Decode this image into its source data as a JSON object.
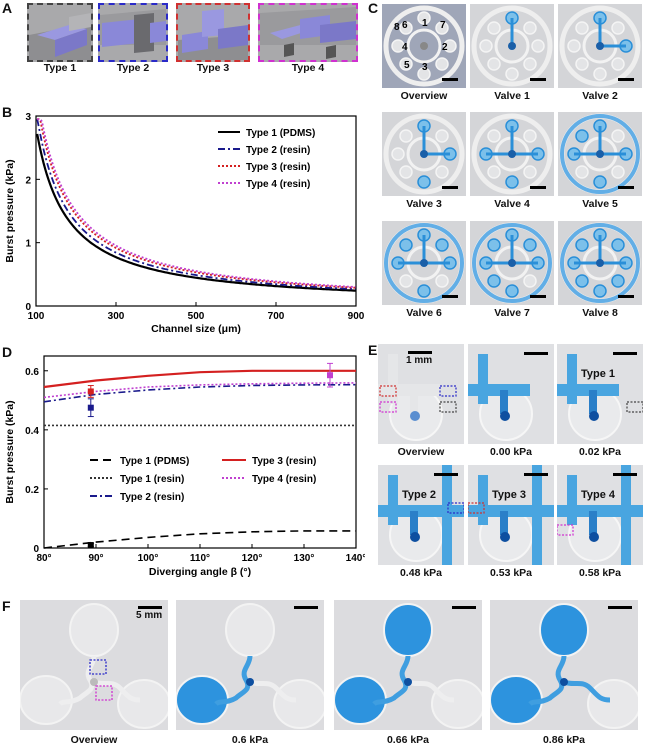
{
  "panels": {
    "a": "A",
    "b": "B",
    "c": "C",
    "d": "D",
    "e": "E",
    "f": "F"
  },
  "panelA": {
    "types": [
      {
        "label": "Type 1",
        "border": "#444444"
      },
      {
        "label": "Type 2",
        "border": "#2a2ac8"
      },
      {
        "label": "Type 3",
        "border": "#d03030"
      },
      {
        "label": "Type 4",
        "border": "#d030d0"
      }
    ]
  },
  "panelC": {
    "captions": [
      "Overview",
      "Valve 1",
      "Valve 2",
      "Valve 3",
      "Valve 4",
      "Valve 5",
      "Valve 6",
      "Valve 7",
      "Valve 8"
    ],
    "overview_numbers": [
      "1",
      "2",
      "3",
      "4",
      "5",
      "6",
      "7",
      "8"
    ]
  },
  "panelE": {
    "captions": [
      "Overview",
      "0.00 kPa",
      "0.02 kPa",
      "0.48 kPa",
      "0.53 kPa",
      "0.58 kPa"
    ],
    "scale_label": "1 mm",
    "type_labels": [
      "Type 1",
      "Type 2",
      "Type 3",
      "Type 4"
    ]
  },
  "panelF": {
    "captions": [
      "Overview",
      "0.6 kPa",
      "0.66 kPa",
      "0.86 kPa"
    ],
    "scale_label": "5 mm"
  },
  "colors": {
    "type1": "#000000",
    "type2": "#1a1a8c",
    "type3": "#d42020",
    "type4": "#c040d0",
    "fluid": "#2a8fd8"
  },
  "chart_data": [
    {
      "type": "line",
      "xlabel": "Channel size (μm)",
      "ylabel": "Burst pressure (kPa)",
      "xlim": [
        100,
        900
      ],
      "ylim": [
        0,
        3
      ],
      "xticks": [
        100,
        300,
        500,
        700,
        900
      ],
      "yticks": [
        0,
        1,
        2,
        3
      ],
      "legend_position": "top-right",
      "series": [
        {
          "name": "Type 1 (PDMS)",
          "style": "solid",
          "color": "#000000",
          "k": 212
        },
        {
          "name": "Type 2 (resin)",
          "style": "dashdot",
          "color": "#1a1a8c",
          "k": 232
        },
        {
          "name": "Type 3 (resin)",
          "style": "dotted",
          "color": "#d42020",
          "k": 252
        },
        {
          "name": "Type 4 (resin)",
          "style": "dotted",
          "color": "#c040d0",
          "k": 262
        }
      ]
    },
    {
      "type": "line",
      "xlabel": "Diverging angle β (°)",
      "ylabel": "Burst pressure (kPa)",
      "xlim": [
        80,
        140
      ],
      "ylim": [
        0,
        0.65
      ],
      "xticks": [
        "80°",
        "90°",
        "100°",
        "110°",
        "120°",
        "130°",
        "140°"
      ],
      "yticks": [
        0,
        0.2,
        0.4,
        0.6
      ],
      "legend_position": "bottom-right",
      "series": [
        {
          "name": "Type 1 (PDMS)",
          "style": "dashed",
          "color": "#000000",
          "x": [
            80,
            90,
            100,
            110,
            120,
            130,
            140
          ],
          "y": [
            0.0,
            0.02,
            0.036,
            0.048,
            0.055,
            0.058,
            0.058
          ]
        },
        {
          "name": "Type 1 (resin)",
          "style": "dotted",
          "color": "#333333",
          "x": [
            80,
            140
          ],
          "y": [
            0.415,
            0.415
          ]
        },
        {
          "name": "Type 2 (resin)",
          "style": "dashdot",
          "color": "#1a1a8c",
          "x": [
            80,
            90,
            100,
            110,
            120,
            130,
            140
          ],
          "y": [
            0.495,
            0.52,
            0.535,
            0.545,
            0.55,
            0.552,
            0.553
          ]
        },
        {
          "name": "Type 3 (resin)",
          "style": "solid",
          "color": "#d42020",
          "x": [
            80,
            90,
            100,
            110,
            120,
            130,
            140
          ],
          "y": [
            0.545,
            0.567,
            0.583,
            0.595,
            0.6,
            0.6,
            0.6
          ]
        },
        {
          "name": "Type 4 (resin)",
          "style": "dotted",
          "color": "#c040d0",
          "x": [
            80,
            90,
            100,
            110,
            120,
            130,
            140
          ],
          "y": [
            0.51,
            0.53,
            0.545,
            0.552,
            0.556,
            0.558,
            0.559
          ]
        }
      ],
      "points": [
        {
          "series": "Type 1 (PDMS)",
          "x": 89,
          "y": 0.01,
          "err": 0.005,
          "color": "#000000"
        },
        {
          "series": "Type 2 (resin)",
          "x": 89,
          "y": 0.475,
          "err": 0.03,
          "color": "#1a1a8c"
        },
        {
          "series": "Type 3 (resin)",
          "x": 89,
          "y": 0.53,
          "err": 0.02,
          "color": "#d42020"
        },
        {
          "series": "Type 4 (resin)",
          "x": 135,
          "y": 0.585,
          "err": 0.04,
          "color": "#c040d0"
        }
      ]
    }
  ]
}
